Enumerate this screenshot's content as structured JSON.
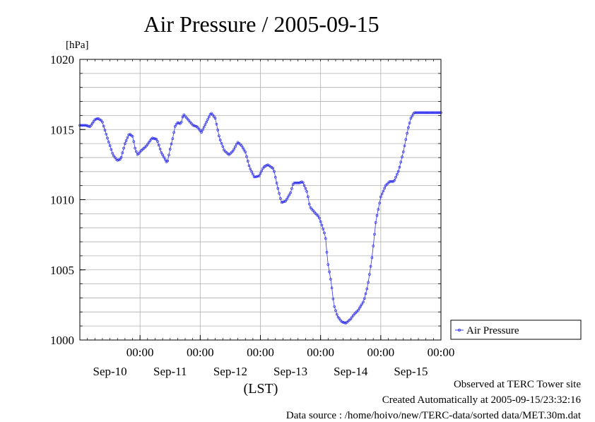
{
  "chart_data": {
    "type": "line",
    "title": "Air Pressure / 2005-09-15",
    "ylabel": "[hPa]",
    "xlabel": "(LST)",
    "ylim": [
      1000,
      1020
    ],
    "xlim": [
      0,
      6
    ],
    "yticks": [
      "1000",
      "1005",
      "1010",
      "1015",
      "1020"
    ],
    "time_tick_label": "00:00",
    "date_labels": [
      "Sep-10",
      "Sep-11",
      "Sep-12",
      "Sep-13",
      "Sep-14",
      "Sep-15"
    ],
    "grid": true,
    "legend_position": "right",
    "series": [
      {
        "name": "Air Pressure",
        "color": "#3333ee",
        "x": [
          0.0,
          0.1,
          0.17,
          0.25,
          0.3,
          0.37,
          0.45,
          0.55,
          0.62,
          0.68,
          0.75,
          0.82,
          0.88,
          0.92,
          0.96,
          1.02,
          1.1,
          1.2,
          1.28,
          1.35,
          1.45,
          1.5,
          1.55,
          1.58,
          1.62,
          1.68,
          1.72,
          1.78,
          1.82,
          1.88,
          1.95,
          2.02,
          2.1,
          2.18,
          2.25,
          2.32,
          2.4,
          2.48,
          2.55,
          2.62,
          2.68,
          2.75,
          2.82,
          2.9,
          2.98,
          3.05,
          3.12,
          3.22,
          3.28,
          3.35,
          3.42,
          3.5,
          3.55,
          3.6,
          3.65,
          3.7,
          3.78,
          3.82,
          3.88,
          3.92,
          3.97,
          4.02,
          4.08,
          4.12,
          4.18,
          4.22,
          4.28,
          4.35,
          4.42,
          4.5,
          4.55,
          4.62,
          4.68,
          4.72,
          4.78,
          4.85,
          4.92,
          5.0,
          5.08,
          5.15,
          5.22,
          5.3,
          5.38,
          5.45,
          5.5,
          5.55,
          5.62,
          5.7,
          5.75,
          5.82,
          5.9,
          6.0
        ],
        "y": [
          1015.3,
          1015.3,
          1015.2,
          1015.7,
          1015.8,
          1015.6,
          1014.5,
          1013.2,
          1012.8,
          1012.9,
          1014.0,
          1014.7,
          1014.5,
          1013.6,
          1013.2,
          1013.5,
          1013.8,
          1014.4,
          1014.3,
          1013.4,
          1012.6,
          1013.6,
          1014.5,
          1015.2,
          1015.5,
          1015.4,
          1016.1,
          1015.8,
          1015.6,
          1015.3,
          1015.2,
          1014.8,
          1015.5,
          1016.2,
          1015.8,
          1014.4,
          1013.5,
          1013.2,
          1013.5,
          1014.1,
          1013.9,
          1013.4,
          1012.3,
          1011.6,
          1011.7,
          1012.3,
          1012.5,
          1012.2,
          1011.0,
          1009.8,
          1009.9,
          1010.5,
          1011.2,
          1011.2,
          1011.2,
          1011.3,
          1010.5,
          1009.5,
          1009.2,
          1009.0,
          1008.8,
          1008.2,
          1007.4,
          1005.5,
          1004.0,
          1002.5,
          1001.7,
          1001.3,
          1001.2,
          1001.5,
          1001.8,
          1002.1,
          1002.5,
          1002.8,
          1003.8,
          1005.7,
          1008.5,
          1010.2,
          1011.0,
          1011.3,
          1011.3,
          1012.1,
          1013.5,
          1015.0,
          1015.8,
          1016.2,
          1016.2,
          1016.2,
          1016.2,
          1016.2,
          1016.2,
          1016.2
        ]
      }
    ],
    "notes": [
      "Observed at TERC Tower site",
      "Created Automatically at 2005-09-15/23:32:16",
      "Data source : /home/hoivo/new/TERC-data/sorted data/MET.30m.dat"
    ]
  }
}
